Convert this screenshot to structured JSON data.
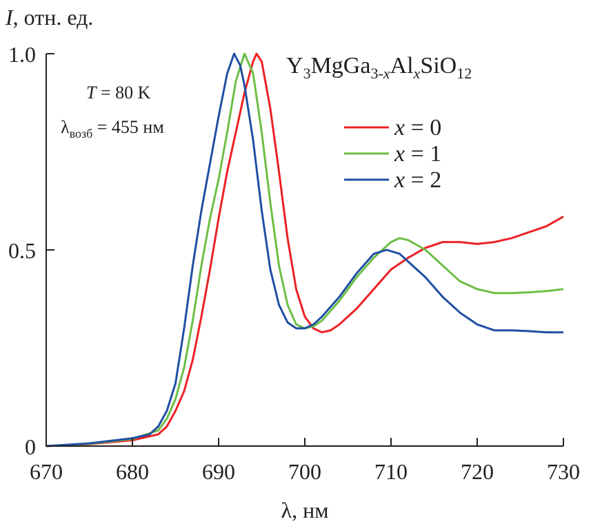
{
  "chart_data": {
    "type": "line",
    "ylabel": {
      "italic": "I",
      "rest": ", отн. ед."
    },
    "xlabel": "λ, нм",
    "xlim": [
      670,
      730
    ],
    "ylim": [
      0,
      1.0
    ],
    "x_ticks": [
      670,
      680,
      690,
      700,
      710,
      720,
      730
    ],
    "x_tick_labels": [
      "670",
      "680",
      "690",
      "700",
      "710",
      "720",
      "730"
    ],
    "y_ticks": [
      0,
      0.5,
      1.0
    ],
    "y_tick_labels": [
      "0",
      "0.5",
      "1.0"
    ],
    "grid": false,
    "title_formula": {
      "p1": "Y",
      "s1": "3",
      "p2": "MgGa",
      "s2": "3-",
      "s2i": "x",
      "p3": "Al",
      "s3i": "x",
      "p4": "SiO",
      "s4": "12"
    },
    "annotations": {
      "temperature": {
        "italic": "T",
        "rest": " = 80 K"
      },
      "excitation": {
        "main": "λ",
        "sub": "возб",
        "rest": " = 455 нм"
      }
    },
    "legend_position": "top-right",
    "series": [
      {
        "name": "x = 0",
        "var": "x",
        "eq": " = 0",
        "color": "#ed2024",
        "x": [
          670,
          675,
          680,
          683,
          684,
          685,
          686,
          687,
          688,
          689,
          690,
          691,
          692,
          693,
          694,
          694.4,
          695,
          696,
          697,
          698,
          699,
          700,
          701,
          702,
          703,
          704,
          706,
          708,
          710,
          712,
          714,
          716,
          718,
          720,
          722,
          724,
          726,
          728,
          730
        ],
        "y": [
          0,
          0.005,
          0.015,
          0.03,
          0.05,
          0.09,
          0.14,
          0.22,
          0.33,
          0.45,
          0.58,
          0.7,
          0.8,
          0.9,
          0.98,
          1.0,
          0.98,
          0.86,
          0.7,
          0.53,
          0.4,
          0.33,
          0.3,
          0.29,
          0.295,
          0.31,
          0.35,
          0.4,
          0.45,
          0.48,
          0.505,
          0.52,
          0.52,
          0.515,
          0.52,
          0.53,
          0.545,
          0.56,
          0.585
        ]
      },
      {
        "name": "x = 1",
        "var": "x",
        "eq": " = 1",
        "color": "#6cbe45",
        "x": [
          670,
          675,
          680,
          683,
          684,
          685,
          686,
          687,
          688,
          689,
          690,
          691,
          692,
          693,
          694,
          695,
          696,
          697,
          698,
          699,
          700,
          701,
          702,
          704,
          706,
          708,
          710,
          711,
          712,
          714,
          716,
          718,
          720,
          722,
          724,
          726,
          728,
          730
        ],
        "y": [
          0,
          0.006,
          0.018,
          0.04,
          0.07,
          0.12,
          0.2,
          0.32,
          0.46,
          0.58,
          0.68,
          0.8,
          0.93,
          1.0,
          0.95,
          0.8,
          0.62,
          0.46,
          0.36,
          0.31,
          0.3,
          0.305,
          0.32,
          0.37,
          0.43,
          0.48,
          0.52,
          0.53,
          0.525,
          0.5,
          0.46,
          0.42,
          0.4,
          0.39,
          0.39,
          0.392,
          0.395,
          0.4
        ]
      },
      {
        "name": "x = 2",
        "var": "x",
        "eq": " = 2",
        "color": "#1f4fa3",
        "x": [
          670,
          675,
          680,
          682,
          683,
          684,
          685,
          686,
          687,
          688,
          689,
          690,
          691,
          691.8,
          692.5,
          693,
          694,
          695,
          696,
          697,
          698,
          699,
          700,
          701,
          702,
          704,
          706,
          708,
          709.5,
          711,
          712,
          714,
          716,
          718,
          720,
          722,
          724,
          726,
          728,
          730
        ],
        "y": [
          0,
          0.007,
          0.02,
          0.03,
          0.05,
          0.09,
          0.16,
          0.3,
          0.46,
          0.6,
          0.72,
          0.84,
          0.95,
          1.0,
          0.97,
          0.92,
          0.78,
          0.6,
          0.45,
          0.36,
          0.315,
          0.3,
          0.3,
          0.31,
          0.33,
          0.38,
          0.44,
          0.49,
          0.5,
          0.49,
          0.47,
          0.43,
          0.38,
          0.34,
          0.31,
          0.295,
          0.295,
          0.293,
          0.29,
          0.29
        ]
      }
    ]
  }
}
